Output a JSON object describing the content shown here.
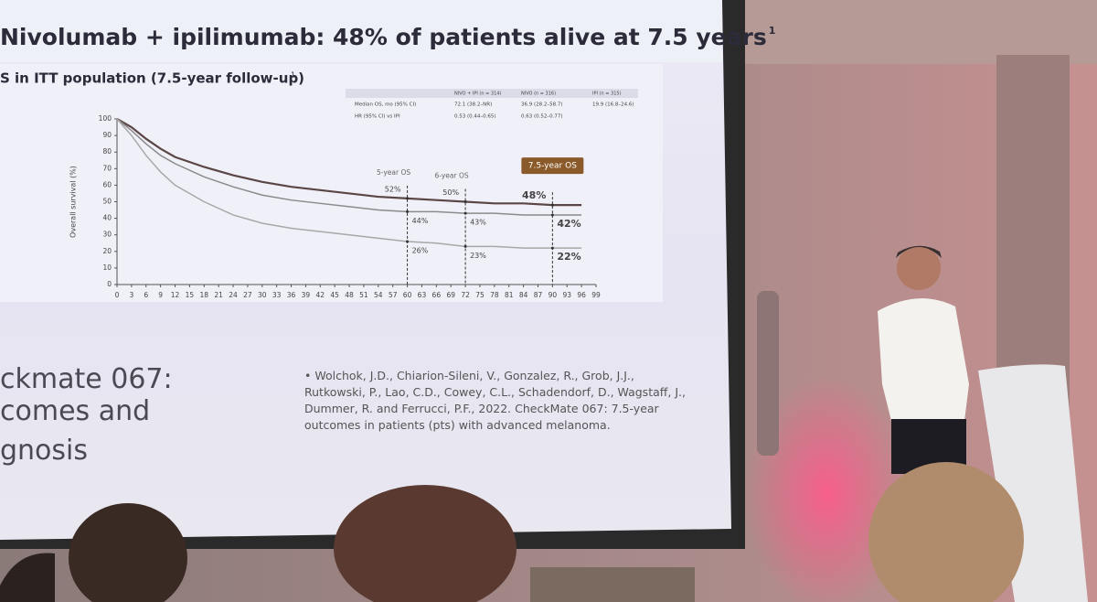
{
  "slide": {
    "title": "Nivolumab + ipilimumab: 48% of patients alive at 7.5 years",
    "title_sup": "1",
    "subtitle": "S in ITT population (7.5-year follow-up)",
    "subtitle_sup": "1",
    "table": {
      "header": [
        "NIVO + IPI (n = 314)",
        "NIVO (n = 316)",
        "IPI (n = 315)"
      ],
      "rows": [
        [
          "Median OS, mo (95% CI)",
          "72.1 (38.2–NR)",
          "36.9 (28.2–58.7)",
          "19.9 (16.8–24.6)"
        ],
        [
          "HR (95% CI) vs IPI",
          "0.53 (0.44–0.65)",
          "0.63 (0.52–0.77)"
        ]
      ]
    },
    "chart": {
      "type": "line",
      "ylabel": "Overall survival (%)",
      "x": [
        0,
        3,
        6,
        9,
        12,
        18,
        24,
        30,
        36,
        42,
        48,
        54,
        60,
        66,
        72,
        78,
        84,
        90,
        96
      ],
      "series": [
        {
          "color": "#5b4646",
          "values": [
            100,
            95,
            88,
            82,
            77,
            71,
            66,
            62,
            59,
            57,
            55,
            53,
            52,
            51,
            50,
            49,
            49,
            48,
            48
          ]
        },
        {
          "color": "#8b8b8b",
          "values": [
            100,
            93,
            85,
            78,
            73,
            65,
            59,
            54,
            51,
            49,
            47,
            45,
            44,
            44,
            43,
            43,
            42,
            42,
            42
          ]
        },
        {
          "color": "#a8a8a8",
          "values": [
            100,
            90,
            78,
            68,
            60,
            50,
            42,
            37,
            34,
            32,
            30,
            28,
            26,
            25,
            23,
            23,
            22,
            22,
            22
          ]
        }
      ],
      "xlim": [
        0,
        99
      ],
      "ylim": [
        0,
        100
      ],
      "xticks": [
        0,
        3,
        6,
        9,
        12,
        15,
        18,
        21,
        24,
        27,
        30,
        33,
        36,
        39,
        42,
        45,
        48,
        51,
        54,
        57,
        60,
        63,
        66,
        69,
        72,
        75,
        78,
        81,
        84,
        87,
        90,
        93,
        96,
        99
      ],
      "yticks": [
        0,
        10,
        20,
        30,
        40,
        50,
        60,
        70,
        80,
        90,
        100
      ],
      "annotations": [
        {
          "x": 60,
          "label": "5-year OS",
          "values": [
            52,
            44,
            26
          ],
          "value_labels": [
            "52%",
            "44%",
            "26%"
          ]
        },
        {
          "x": 72,
          "label": "6-year OS",
          "values": [
            50,
            43,
            23
          ],
          "value_labels": [
            "50%",
            "43%",
            "23%"
          ]
        },
        {
          "x": 90,
          "label": "7.5-year OS",
          "values": [
            48,
            42,
            22
          ],
          "value_labels": [
            "48%",
            "42%",
            "22%"
          ]
        }
      ]
    },
    "left_text": [
      "ckmate 067:",
      "comes and",
      "gnosis"
    ],
    "citation": "Wolchok, J.D., Chiarion-Sileni, V., Gonzalez, R., Grob, J.J., Rutkowski, P., Lao, C.D., Cowey, C.L., Schadendorf, D., Wagstaff, J., Dummer, R. and Ferrucci, P.F., 2022. CheckMate 067: 7.5-year outcomes in patients (pts) with advanced melanoma."
  }
}
